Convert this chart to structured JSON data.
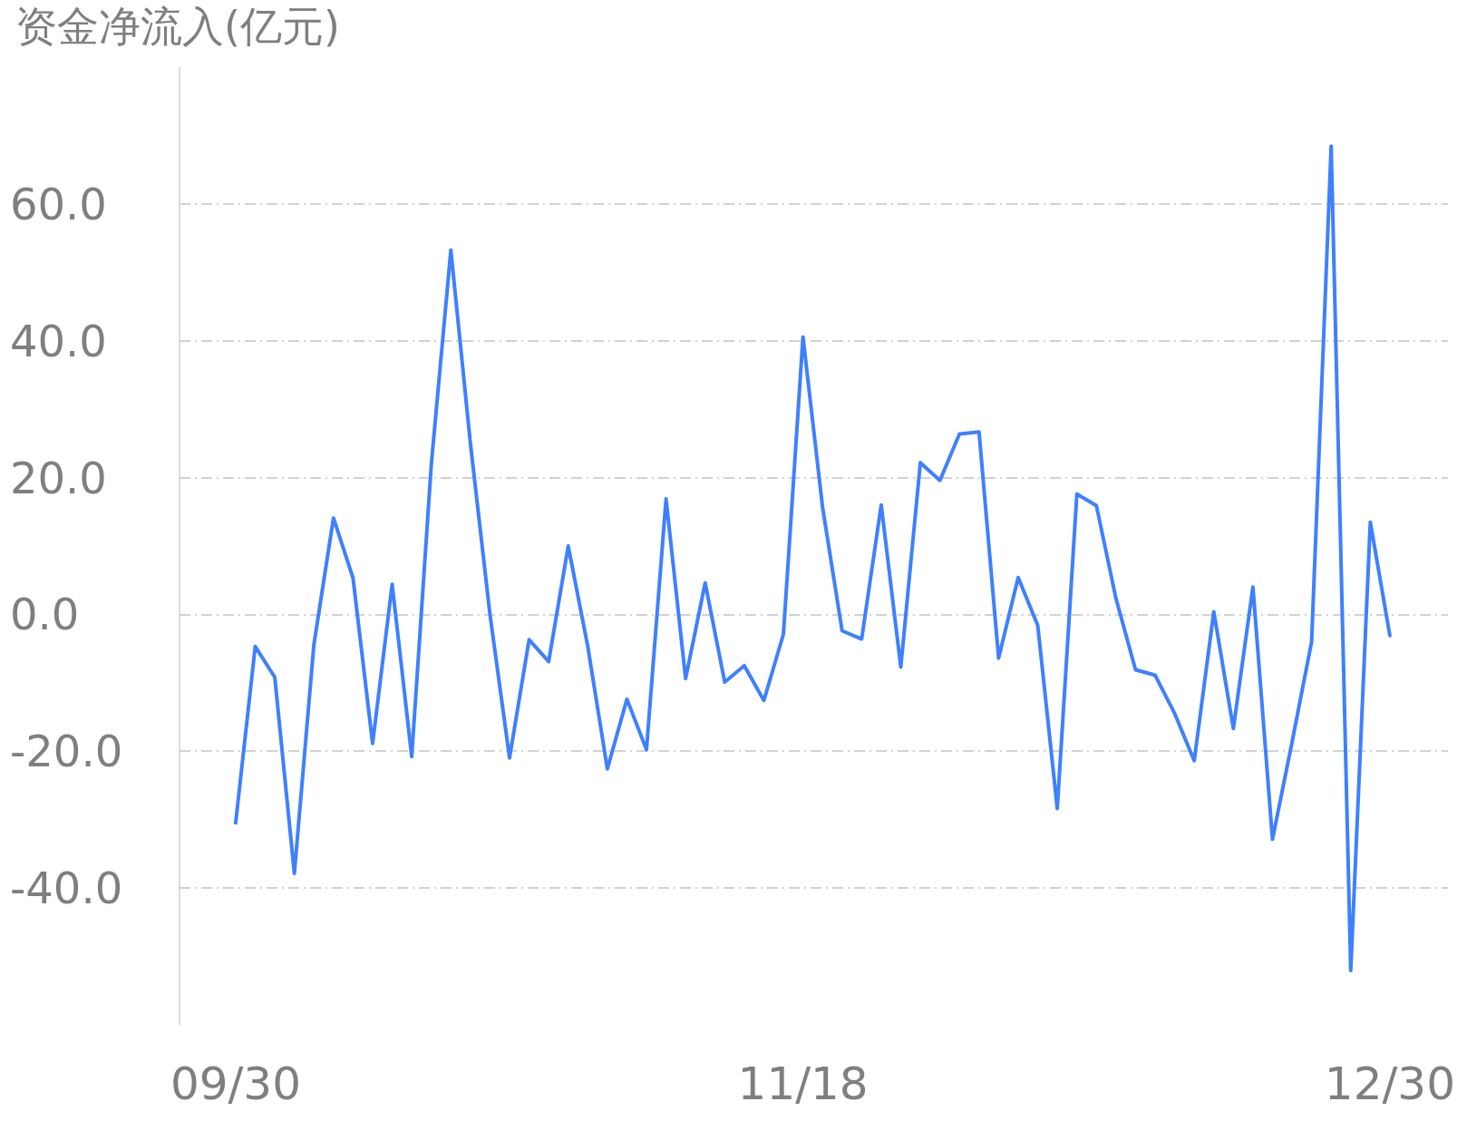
{
  "chart_data": {
    "type": "line",
    "ylabel": "资金净流入(亿元)",
    "categories": [
      "09/30",
      null,
      null,
      null,
      null,
      null,
      null,
      null,
      null,
      null,
      null,
      null,
      null,
      null,
      null,
      null,
      null,
      null,
      null,
      null,
      null,
      null,
      null,
      null,
      null,
      null,
      null,
      null,
      null,
      "11/18",
      null,
      null,
      null,
      null,
      null,
      null,
      null,
      null,
      null,
      null,
      null,
      null,
      null,
      null,
      null,
      null,
      null,
      null,
      null,
      null,
      null,
      null,
      null,
      null,
      null,
      null,
      null,
      null,
      null,
      "12/30"
    ],
    "series": [
      {
        "color": "#3e80ff",
        "values": [
          -30.5,
          -4.7,
          -9.2,
          -37.9,
          -4.4,
          14.1,
          5.3,
          -18.9,
          4.4,
          -20.8,
          21.9,
          53.3,
          25.0,
          0.0,
          -21.0,
          -3.7,
          -6.9,
          10.0,
          -4.7,
          -22.6,
          -12.4,
          -19.8,
          16.9,
          -9.4,
          4.6,
          -9.9,
          -7.5,
          -12.6,
          -2.9,
          40.6,
          15.7,
          -2.4,
          -3.6,
          16.0,
          -7.7,
          22.2,
          19.6,
          26.4,
          26.7,
          -6.4,
          5.4,
          -1.6,
          -28.4,
          17.6,
          15.9,
          2.3,
          -8.1,
          -8.9,
          -14.5,
          -21.4,
          0.4,
          -16.7,
          4.0,
          -32.9,
          -18.7,
          -4.0,
          68.5,
          -52.1,
          13.5,
          -3.1
        ]
      }
    ],
    "ylim": [
      -60,
      80
    ],
    "yticks": [
      {
        "value": -40,
        "label": "-40.0"
      },
      {
        "value": -20,
        "label": "-20.0"
      },
      {
        "value": 0,
        "label": "0.0"
      },
      {
        "value": 20,
        "label": "20.0"
      },
      {
        "value": 40,
        "label": "40.0"
      },
      {
        "value": 60,
        "label": "60.0"
      }
    ],
    "grid": "y",
    "marker": "none",
    "line_style": "solid"
  }
}
